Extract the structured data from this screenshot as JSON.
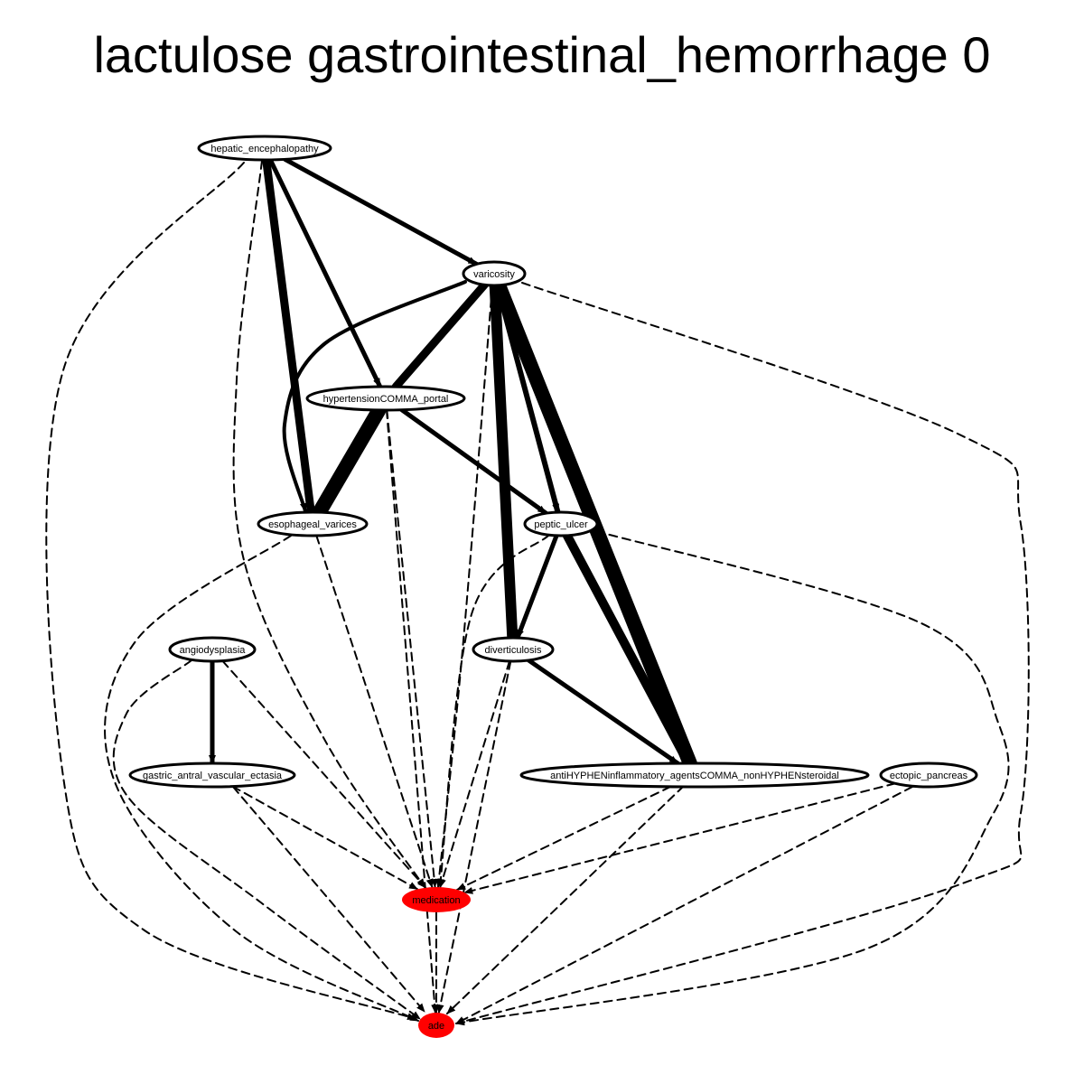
{
  "title": "lactulose gastrointestinal_hemorrhage 0",
  "colors": {
    "highlight": "#ff0000",
    "node_fill": "#ffffff",
    "stroke": "#000000"
  },
  "nodes": [
    {
      "id": "hepatic_encephalopathy",
      "label": "hepatic_encephalopathy",
      "highlight": false
    },
    {
      "id": "varicosity",
      "label": "varicosity",
      "highlight": false
    },
    {
      "id": "hypertension_portal",
      "label": "hypertensionCOMMA_portal",
      "highlight": false
    },
    {
      "id": "esophageal_varices",
      "label": "esophageal_varices",
      "highlight": false
    },
    {
      "id": "peptic_ulcer",
      "label": "peptic_ulcer",
      "highlight": false
    },
    {
      "id": "angiodysplasia",
      "label": "angiodysplasia",
      "highlight": false
    },
    {
      "id": "diverticulosis",
      "label": "diverticulosis",
      "highlight": false
    },
    {
      "id": "gastric_antral_vascular_ectasia",
      "label": "gastric_antral_vascular_ectasia",
      "highlight": false
    },
    {
      "id": "nsaids",
      "label": "antiHYPHENinflammatory_agentsCOMMA_nonHYPHENsteroidal",
      "highlight": false
    },
    {
      "id": "ectopic_pancreas",
      "label": "ectopic_pancreas",
      "highlight": false
    },
    {
      "id": "medication",
      "label": "medication",
      "highlight": true
    },
    {
      "id": "ade",
      "label": "ade",
      "highlight": true
    }
  ],
  "edges": [
    {
      "from": "hepatic_encephalopathy",
      "to": "varicosity",
      "style": "solid",
      "weight": 5
    },
    {
      "from": "hepatic_encephalopathy",
      "to": "hypertension_portal",
      "style": "solid",
      "weight": 5
    },
    {
      "from": "hepatic_encephalopathy",
      "to": "esophageal_varices",
      "style": "solid",
      "weight": 9
    },
    {
      "from": "hepatic_encephalopathy",
      "to": "medication",
      "style": "dashed",
      "weight": 2
    },
    {
      "from": "hepatic_encephalopathy",
      "to": "ade",
      "style": "dashed",
      "weight": 2
    },
    {
      "from": "varicosity",
      "to": "hypertension_portal",
      "style": "solid",
      "weight": 9
    },
    {
      "from": "varicosity",
      "to": "esophageal_varices",
      "style": "solid",
      "weight": 4
    },
    {
      "from": "varicosity",
      "to": "peptic_ulcer",
      "style": "solid",
      "weight": 6
    },
    {
      "from": "varicosity",
      "to": "diverticulosis",
      "style": "solid",
      "weight": 12
    },
    {
      "from": "varicosity",
      "to": "nsaids",
      "style": "solid",
      "weight": 16
    },
    {
      "from": "varicosity",
      "to": "medication",
      "style": "dashed",
      "weight": 2
    },
    {
      "from": "varicosity",
      "to": "ade",
      "style": "dashed",
      "weight": 2
    },
    {
      "from": "hypertension_portal",
      "to": "esophageal_varices",
      "style": "solid",
      "weight": 16
    },
    {
      "from": "hypertension_portal",
      "to": "peptic_ulcer",
      "style": "solid",
      "weight": 5
    },
    {
      "from": "hypertension_portal",
      "to": "medication",
      "style": "dashed",
      "weight": 2
    },
    {
      "from": "hypertension_portal",
      "to": "ade",
      "style": "dashed",
      "weight": 2
    },
    {
      "from": "esophageal_varices",
      "to": "medication",
      "style": "dashed",
      "weight": 2
    },
    {
      "from": "esophageal_varices",
      "to": "ade",
      "style": "dashed",
      "weight": 2
    },
    {
      "from": "peptic_ulcer",
      "to": "diverticulosis",
      "style": "solid",
      "weight": 5
    },
    {
      "from": "peptic_ulcer",
      "to": "nsaids",
      "style": "solid",
      "weight": 10
    },
    {
      "from": "peptic_ulcer",
      "to": "medication",
      "style": "dashed",
      "weight": 2
    },
    {
      "from": "peptic_ulcer",
      "to": "ade",
      "style": "dashed",
      "weight": 2
    },
    {
      "from": "angiodysplasia",
      "to": "gastric_antral_vascular_ectasia",
      "style": "solid",
      "weight": 5
    },
    {
      "from": "angiodysplasia",
      "to": "medication",
      "style": "dashed",
      "weight": 2
    },
    {
      "from": "angiodysplasia",
      "to": "ade",
      "style": "dashed",
      "weight": 2
    },
    {
      "from": "diverticulosis",
      "to": "nsaids",
      "style": "solid",
      "weight": 5
    },
    {
      "from": "diverticulosis",
      "to": "medication",
      "style": "dashed",
      "weight": 2
    },
    {
      "from": "diverticulosis",
      "to": "ade",
      "style": "dashed",
      "weight": 2
    },
    {
      "from": "gastric_antral_vascular_ectasia",
      "to": "medication",
      "style": "dashed",
      "weight": 2
    },
    {
      "from": "gastric_antral_vascular_ectasia",
      "to": "ade",
      "style": "dashed",
      "weight": 2
    },
    {
      "from": "nsaids",
      "to": "medication",
      "style": "dashed",
      "weight": 2
    },
    {
      "from": "nsaids",
      "to": "ade",
      "style": "dashed",
      "weight": 2
    },
    {
      "from": "ectopic_pancreas",
      "to": "medication",
      "style": "dashed",
      "weight": 2
    },
    {
      "from": "ectopic_pancreas",
      "to": "ade",
      "style": "dashed",
      "weight": 2
    },
    {
      "from": "medication",
      "to": "ade",
      "style": "dashed",
      "weight": 2
    }
  ]
}
